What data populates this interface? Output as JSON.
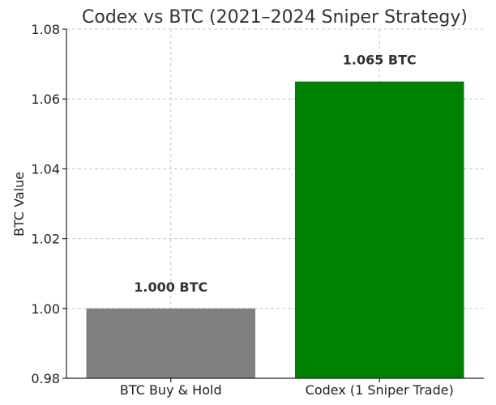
{
  "chart_data": {
    "type": "bar",
    "title": "Codex vs BTC (2021–2024 Sniper Strategy)",
    "xlabel": "",
    "ylabel": "BTC Value",
    "categories": [
      "BTC Buy & Hold",
      "Codex (1 Sniper Trade)"
    ],
    "values": [
      1.0,
      1.065
    ],
    "data_labels": [
      "1.000 BTC",
      "1.065 BTC"
    ],
    "colors": [
      "#808080",
      "#008000"
    ],
    "ylim": [
      0.98,
      1.08
    ],
    "yticks": [
      0.98,
      1.0,
      1.02,
      1.04,
      1.06,
      1.08
    ],
    "ytick_labels": [
      "0.98",
      "1.00",
      "1.02",
      "1.04",
      "1.06",
      "1.08"
    ],
    "grid": true,
    "legend": "none"
  }
}
